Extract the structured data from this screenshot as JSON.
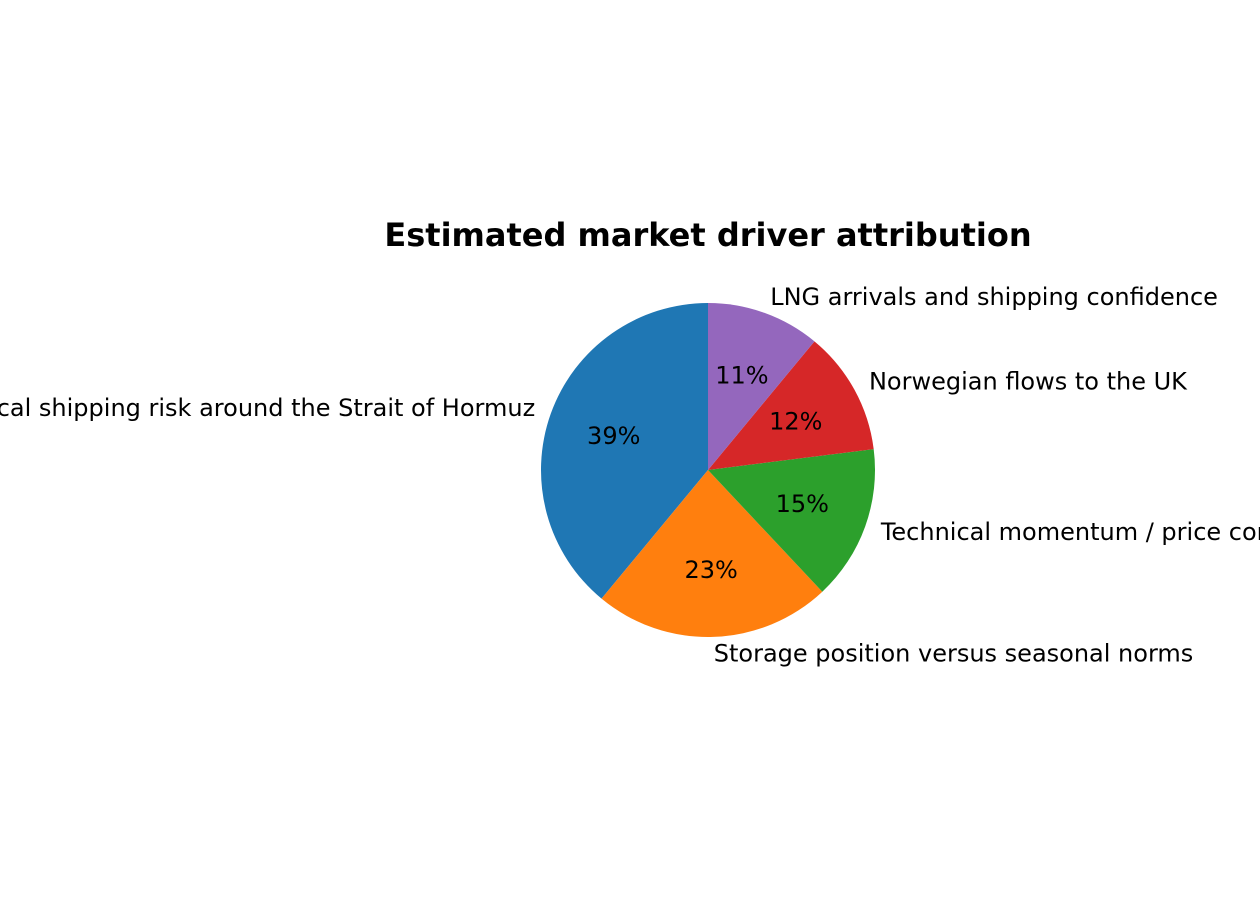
{
  "chart_data": {
    "type": "pie",
    "title": "Estimated market driver attribution",
    "categories": [
      "Geopolitical shipping risk around the Strait of Hormuz",
      "Storage position versus seasonal norms",
      "Technical momentum / price consolidation",
      "Norwegian flows to the UK",
      "LNG arrivals and shipping confidence"
    ],
    "values": [
      39,
      23,
      15,
      12,
      11
    ],
    "value_labels": [
      "39%",
      "23%",
      "15%",
      "12%",
      "11%"
    ],
    "colors": [
      "#1f77b4",
      "#ff7f0e",
      "#2ca02c",
      "#d62728",
      "#9467bd"
    ],
    "start_angle_deg": 90,
    "direction": "counterclockwise",
    "legend": "none"
  }
}
